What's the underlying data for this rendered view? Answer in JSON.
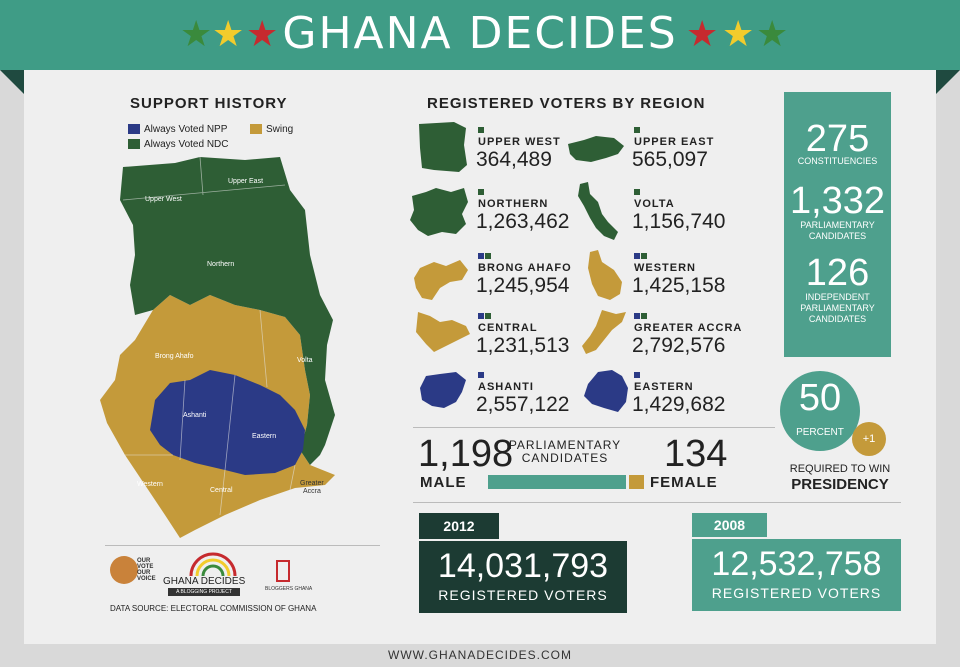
{
  "banner": {
    "title": "GHANA DECIDES"
  },
  "support_history": {
    "heading": "SUPPORT HISTORY",
    "legend": {
      "npp": "Always Voted NPP",
      "ndc": "Always Voted NDC",
      "swing": "Swing"
    },
    "map_labels": {
      "upper_west": "Upper West",
      "upper_east": "Upper East",
      "northern": "Northern",
      "brong_ahafo": "Brong Ahafo",
      "volta": "Volta",
      "ashanti": "Ashanti",
      "eastern": "Eastern",
      "western": "Western",
      "central": "Central",
      "greater_accra_1": "Greater",
      "greater_accra_2": "Accra"
    },
    "colors": {
      "npp": "#2b3a86",
      "ndc": "#2e5e35",
      "swing": "#c49a3a"
    }
  },
  "logos": {
    "our_vote_1": "OUR",
    "our_vote_2": "VOTE",
    "our_vote_3": "OUR",
    "our_vote_4": "VOICE",
    "ghana_decides": "GHANA DECIDES",
    "ghana_decides_sub": "A BLOGGING PROJECT",
    "bloggers_ghana": "BLOGGERS GHANA",
    "source": "DATA SOURCE:  ELECTORAL COMMISSION OF GHANA"
  },
  "registered": {
    "heading": "REGISTERED VOTERS BY REGION",
    "regions": [
      {
        "name": "UPPER WEST",
        "count": "364,489"
      },
      {
        "name": "UPPER EAST",
        "count": "565,097"
      },
      {
        "name": "NORTHERN",
        "count": "1,263,462"
      },
      {
        "name": "VOLTA",
        "count": "1,156,740"
      },
      {
        "name": "BRONG AHAFO",
        "count": "1,245,954"
      },
      {
        "name": "WESTERN",
        "count": "1,425,158"
      },
      {
        "name": "CENTRAL",
        "count": "1,231,513"
      },
      {
        "name": "GREATER ACCRA",
        "count": "2,792,576"
      },
      {
        "name": "ASHANTI",
        "count": "2,557,122"
      },
      {
        "name": "EASTERN",
        "count": "1,429,682"
      }
    ]
  },
  "stats": {
    "constituencies_num": "275",
    "constituencies_label": "CONSTITUENCIES",
    "candidates_num": "1,332",
    "candidates_label_1": "PARLIAMENTARY",
    "candidates_label_2": "CANDIDATES",
    "independent_num": "126",
    "independent_label_1": "INDEPENDENT",
    "independent_label_2": "PARLIAMENTARY",
    "independent_label_3": "CANDIDATES"
  },
  "presidency": {
    "num": "50",
    "percent": "PERCENT",
    "plus": "+1",
    "label_1": "REQUIRED TO WIN",
    "label_2": "PRESIDENCY"
  },
  "candidates": {
    "male_num": "1,198",
    "male_label": "MALE",
    "title_1": "PARLIAMENTARY",
    "title_2": "CANDIDATES",
    "female_num": "134",
    "female_label": "FEMALE",
    "male_share": 0.899
  },
  "voters_2012": {
    "year": "2012",
    "num": "14,031,793",
    "label": "REGISTERED VOTERS"
  },
  "voters_2008": {
    "year": "2008",
    "num": "12,532,758",
    "label": "REGISTERED VOTERS"
  },
  "footer": {
    "url": "WWW.GHANADECIDES.COM"
  }
}
